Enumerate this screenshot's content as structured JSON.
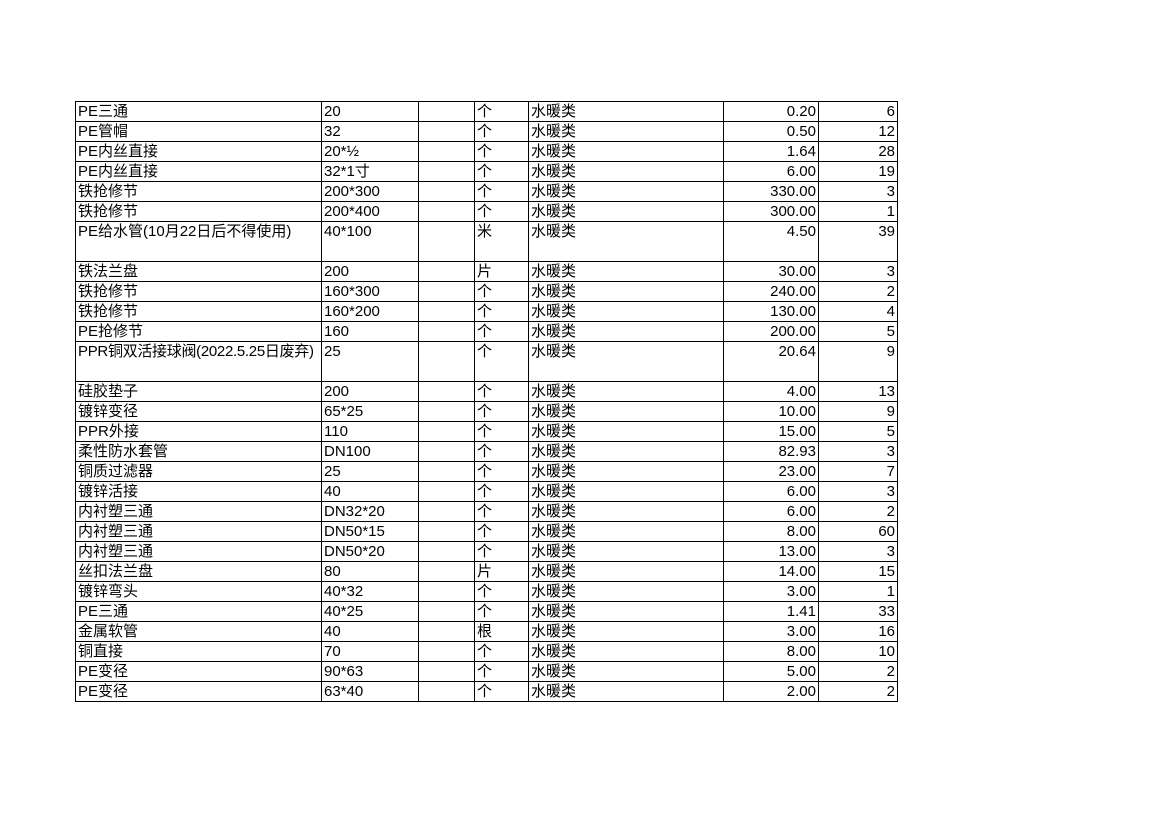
{
  "table": {
    "rows": [
      [
        "PE三通",
        "20",
        "",
        "个",
        "水暖类",
        "0.20",
        "6"
      ],
      [
        "PE管帽",
        "32",
        "",
        "个",
        "水暖类",
        "0.50",
        "12"
      ],
      [
        "PE内丝直接",
        "20*½",
        "",
        "个",
        "水暖类",
        "1.64",
        "28"
      ],
      [
        "PE内丝直接",
        "32*1寸",
        "",
        "个",
        "水暖类",
        "6.00",
        "19"
      ],
      [
        "铁抢修节",
        "200*300",
        "",
        "个",
        "水暖类",
        "330.00",
        "3"
      ],
      [
        "铁抢修节",
        "200*400",
        "",
        "个",
        "水暖类",
        "300.00",
        "1"
      ],
      [
        "PE给水管(10月22日后不得使用)",
        "40*100",
        "",
        "米",
        "水暖类",
        "4.50",
        "39"
      ],
      [
        "铁法兰盘",
        "200",
        "",
        "片",
        "水暖类",
        "30.00",
        "3"
      ],
      [
        "铁抢修节",
        "160*300",
        "",
        "个",
        "水暖类",
        "240.00",
        "2"
      ],
      [
        "铁抢修节",
        "160*200",
        "",
        "个",
        "水暖类",
        "130.00",
        "4"
      ],
      [
        "PE抢修节",
        "160",
        "",
        "个",
        "水暖类",
        "200.00",
        "5"
      ],
      [
        "PPR铜双活接球阀(2022.5.25日废弃)",
        "25",
        "",
        "个",
        "水暖类",
        "20.64",
        "9"
      ],
      [
        "硅胶垫子",
        "200",
        "",
        "个",
        "水暖类",
        "4.00",
        "13"
      ],
      [
        "镀锌变径",
        "65*25",
        "",
        "个",
        "水暖类",
        "10.00",
        "9"
      ],
      [
        "PPR外接",
        "110",
        "",
        "个",
        "水暖类",
        "15.00",
        "5"
      ],
      [
        "柔性防水套管",
        "DN100",
        "",
        "个",
        "水暖类",
        "82.93",
        "3"
      ],
      [
        "铜质过滤器",
        "25",
        "",
        "个",
        "水暖类",
        "23.00",
        "7"
      ],
      [
        "镀锌活接",
        "40",
        "",
        "个",
        "水暖类",
        "6.00",
        "3"
      ],
      [
        "内衬塑三通",
        "DN32*20",
        "",
        "个",
        "水暖类",
        "6.00",
        "2"
      ],
      [
        "内衬塑三通",
        "DN50*15",
        "",
        "个",
        "水暖类",
        "8.00",
        "60"
      ],
      [
        "内衬塑三通",
        "DN50*20",
        "",
        "个",
        "水暖类",
        "13.00",
        "3"
      ],
      [
        "丝扣法兰盘",
        "80",
        "",
        "片",
        "水暖类",
        "14.00",
        "15"
      ],
      [
        "镀锌弯头",
        "40*32",
        "",
        "个",
        "水暖类",
        "3.00",
        "1"
      ],
      [
        "PE三通",
        "40*25",
        "",
        "个",
        "水暖类",
        "1.41",
        "33"
      ],
      [
        "金属软管",
        "40",
        "",
        "根",
        "水暖类",
        "3.00",
        "16"
      ],
      [
        "铜直接",
        "70",
        "",
        "个",
        "水暖类",
        "8.00",
        "10"
      ],
      [
        "PE变径",
        "90*63",
        "",
        "个",
        "水暖类",
        "5.00",
        "2"
      ],
      [
        "PE变径",
        "63*40",
        "",
        "个",
        "水暖类",
        "2.00",
        "2"
      ]
    ]
  }
}
